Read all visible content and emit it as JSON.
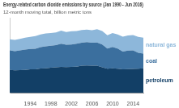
{
  "chart_data": {
    "type": "area",
    "title": "Energy-related carbon dioxide emissions by source (Jan 1990 - Jun 2016)",
    "subtitle": "12-month moving total, billion metric tons",
    "x": [
      1990,
      1991,
      1992,
      1993,
      1994,
      1995,
      1996,
      1997,
      1998,
      1999,
      2000,
      2001,
      2002,
      2003,
      2004,
      2005,
      2006,
      2007,
      2008,
      2009,
      2010,
      2011,
      2012,
      2013,
      2014,
      2015,
      2016
    ],
    "series": [
      {
        "name": "petroleum",
        "color": "#123f66",
        "values": [
          2.18,
          2.13,
          2.16,
          2.18,
          2.22,
          2.23,
          2.3,
          2.33,
          2.37,
          2.42,
          2.46,
          2.44,
          2.46,
          2.48,
          2.56,
          2.58,
          2.56,
          2.56,
          2.41,
          2.29,
          2.33,
          2.29,
          2.23,
          2.25,
          2.27,
          2.29,
          2.32
        ]
      },
      {
        "name": "coal",
        "color": "#3b6f9e",
        "values": [
          1.82,
          1.8,
          1.83,
          1.9,
          1.91,
          1.92,
          1.99,
          2.04,
          2.06,
          2.06,
          2.15,
          2.08,
          2.09,
          2.14,
          2.15,
          2.18,
          2.15,
          2.17,
          2.13,
          1.88,
          1.99,
          1.88,
          1.66,
          1.73,
          1.72,
          1.48,
          1.38
        ]
      },
      {
        "name": "natural gas",
        "color": "#8db7da",
        "values": [
          1.03,
          1.05,
          1.08,
          1.11,
          1.13,
          1.18,
          1.19,
          1.2,
          1.19,
          1.19,
          1.24,
          1.19,
          1.23,
          1.19,
          1.19,
          1.18,
          1.16,
          1.24,
          1.26,
          1.23,
          1.3,
          1.32,
          1.38,
          1.4,
          1.44,
          1.48,
          1.49
        ]
      }
    ],
    "xlim": [
      1990,
      2016
    ],
    "xticks": [
      1994,
      1998,
      2002,
      2006,
      2010,
      2014
    ],
    "ylim": [
      0,
      7
    ],
    "stacked": true,
    "grid": false,
    "tick_labels": "x"
  }
}
